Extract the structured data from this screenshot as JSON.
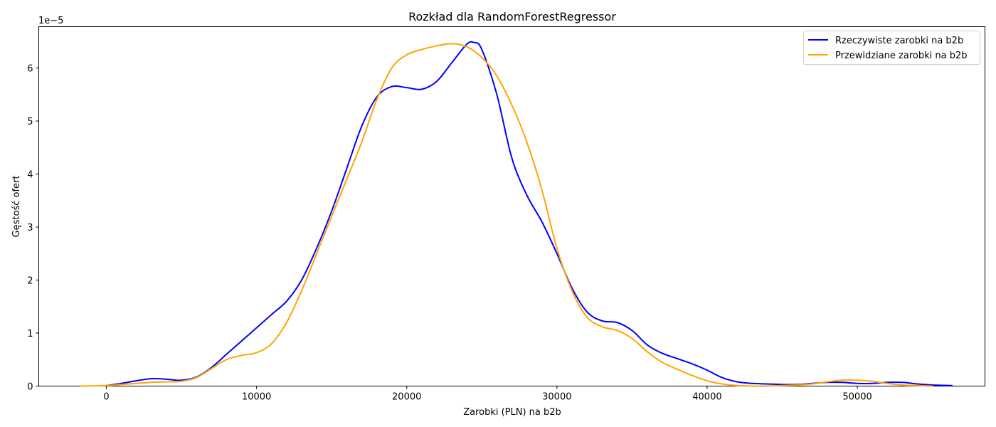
{
  "chart_data": {
    "type": "line",
    "title": "Rozkład dla RandomForestRegressor",
    "xlabel": "Zarobki (PLN) na b2b",
    "ylabel": "Gęstość ofert",
    "y_offset_text": "1e−5",
    "xlim": [
      -4500,
      58500
    ],
    "ylim": [
      0,
      6.78
    ],
    "xticks": [
      0,
      10000,
      20000,
      30000,
      40000,
      50000
    ],
    "xtick_labels": [
      "0",
      "10000",
      "20000",
      "30000",
      "40000",
      "50000"
    ],
    "yticks": [
      0,
      1,
      2,
      3,
      4,
      5,
      6
    ],
    "ytick_labels": [
      "0",
      "1",
      "2",
      "3",
      "4",
      "5",
      "6"
    ],
    "grid": false,
    "legend_position": "top-right",
    "series": [
      {
        "name": "Rzeczywiste zarobki na b2b",
        "color": "#0000ff",
        "points": [
          [
            0,
            0.01
          ],
          [
            1000,
            0.05
          ],
          [
            2000,
            0.1
          ],
          [
            3000,
            0.14
          ],
          [
            4000,
            0.13
          ],
          [
            5000,
            0.11
          ],
          [
            6000,
            0.17
          ],
          [
            7000,
            0.35
          ],
          [
            8000,
            0.6
          ],
          [
            9000,
            0.85
          ],
          [
            10000,
            1.1
          ],
          [
            11000,
            1.35
          ],
          [
            12000,
            1.6
          ],
          [
            13000,
            2.0
          ],
          [
            14000,
            2.6
          ],
          [
            15000,
            3.3
          ],
          [
            16000,
            4.1
          ],
          [
            17000,
            4.9
          ],
          [
            18000,
            5.45
          ],
          [
            19000,
            5.65
          ],
          [
            20000,
            5.63
          ],
          [
            21000,
            5.6
          ],
          [
            22000,
            5.75
          ],
          [
            23000,
            6.1
          ],
          [
            24000,
            6.45
          ],
          [
            24500,
            6.48
          ],
          [
            25000,
            6.35
          ],
          [
            26000,
            5.5
          ],
          [
            27000,
            4.3
          ],
          [
            28000,
            3.6
          ],
          [
            29000,
            3.1
          ],
          [
            30000,
            2.5
          ],
          [
            31000,
            1.85
          ],
          [
            32000,
            1.4
          ],
          [
            33000,
            1.23
          ],
          [
            34000,
            1.2
          ],
          [
            35000,
            1.05
          ],
          [
            36000,
            0.78
          ],
          [
            37000,
            0.62
          ],
          [
            38000,
            0.52
          ],
          [
            39000,
            0.42
          ],
          [
            40000,
            0.3
          ],
          [
            41000,
            0.16
          ],
          [
            42000,
            0.08
          ],
          [
            43000,
            0.05
          ],
          [
            44000,
            0.04
          ],
          [
            45000,
            0.03
          ],
          [
            46000,
            0.03
          ],
          [
            47000,
            0.05
          ],
          [
            48000,
            0.07
          ],
          [
            49000,
            0.07
          ],
          [
            50000,
            0.05
          ],
          [
            51000,
            0.05
          ],
          [
            52000,
            0.07
          ],
          [
            53000,
            0.07
          ],
          [
            54000,
            0.04
          ],
          [
            55000,
            0.02
          ],
          [
            56300,
            0.01
          ]
        ]
      },
      {
        "name": "Przewidziane zarobki na b2b",
        "color": "#ffa500",
        "points": [
          [
            -1700,
            0.0
          ],
          [
            0,
            0.01
          ],
          [
            1000,
            0.03
          ],
          [
            2000,
            0.05
          ],
          [
            3000,
            0.07
          ],
          [
            4000,
            0.08
          ],
          [
            5000,
            0.09
          ],
          [
            6000,
            0.16
          ],
          [
            7000,
            0.33
          ],
          [
            8000,
            0.5
          ],
          [
            9000,
            0.58
          ],
          [
            10000,
            0.63
          ],
          [
            11000,
            0.8
          ],
          [
            12000,
            1.2
          ],
          [
            13000,
            1.8
          ],
          [
            14000,
            2.5
          ],
          [
            15000,
            3.2
          ],
          [
            16000,
            3.9
          ],
          [
            17000,
            4.6
          ],
          [
            18000,
            5.4
          ],
          [
            19000,
            6.0
          ],
          [
            20000,
            6.25
          ],
          [
            21000,
            6.35
          ],
          [
            22000,
            6.42
          ],
          [
            23000,
            6.46
          ],
          [
            24000,
            6.4
          ],
          [
            25000,
            6.2
          ],
          [
            26000,
            5.85
          ],
          [
            27000,
            5.3
          ],
          [
            28000,
            4.6
          ],
          [
            29000,
            3.7
          ],
          [
            30000,
            2.6
          ],
          [
            31000,
            1.8
          ],
          [
            32000,
            1.3
          ],
          [
            33000,
            1.12
          ],
          [
            34000,
            1.05
          ],
          [
            35000,
            0.9
          ],
          [
            36000,
            0.65
          ],
          [
            37000,
            0.45
          ],
          [
            38000,
            0.32
          ],
          [
            39000,
            0.2
          ],
          [
            40000,
            0.1
          ],
          [
            41000,
            0.04
          ],
          [
            42000,
            0.01
          ],
          [
            43000,
            0.0
          ],
          [
            44000,
            0.0
          ],
          [
            45000,
            0.01
          ],
          [
            46000,
            0.02
          ],
          [
            47000,
            0.04
          ],
          [
            48000,
            0.08
          ],
          [
            49000,
            0.11
          ],
          [
            50000,
            0.11
          ],
          [
            51000,
            0.09
          ],
          [
            52000,
            0.05
          ],
          [
            53000,
            0.02
          ],
          [
            54000,
            0.01
          ],
          [
            55000,
            0.0
          ]
        ]
      }
    ]
  }
}
